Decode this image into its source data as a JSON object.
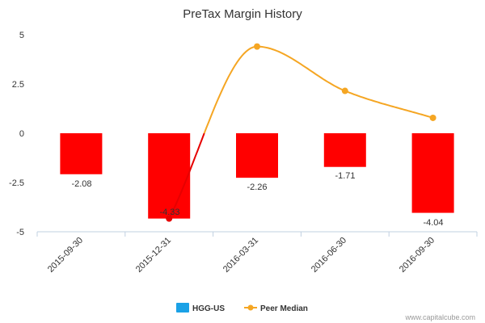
{
  "chart_data": {
    "type": "bar",
    "title": "PreTax Margin History",
    "categories": [
      "2015-09-30",
      "2015-12-31",
      "2016-03-31",
      "2016-06-30",
      "2016-09-30"
    ],
    "ylim": [
      -5,
      5
    ],
    "yticks": [
      "5",
      "2.5",
      "0",
      "-2.5",
      "-5"
    ],
    "grid": false,
    "legend_position": "bottom-center",
    "series": [
      {
        "name": "HGG-US",
        "type": "bar",
        "values": [
          -2.08,
          -4.33,
          -2.26,
          -1.71,
          -4.04
        ],
        "labels": [
          "-2.08",
          "-4.33",
          "-2.26",
          "-1.71",
          "-4.04"
        ],
        "color": "#ff0000",
        "legend_color": "#1aa1e6"
      },
      {
        "name": "Peer Median",
        "type": "line",
        "x": [
          1,
          2,
          3,
          4
        ],
        "values": [
          -4.33,
          4.4,
          2.15,
          0.78
        ],
        "color": "#f5a623",
        "below_zero_color": "#e60000"
      }
    ],
    "credit": "www.capitalcube.com"
  }
}
